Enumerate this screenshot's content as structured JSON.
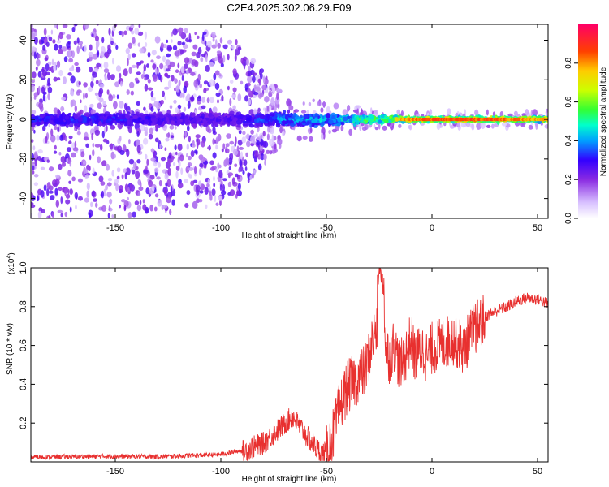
{
  "title": "C2E4.2025.302.06.29.E09",
  "chart_data": [
    {
      "type": "heatmap",
      "title": "C2E4.2025.302.06.29.E09",
      "xlabel": "Height of straight line (km)",
      "ylabel": "Frequency (Hz)",
      "xlim": [
        -190,
        55
      ],
      "ylim": [
        -50,
        48
      ],
      "xticks": [
        -150,
        -100,
        -50,
        0,
        50
      ],
      "yticks": [
        -40,
        -20,
        0,
        20,
        40
      ],
      "colorbar": {
        "label": "Normalized spectral amplitude",
        "range": [
          0,
          1
        ],
        "ticks": [
          0.0,
          0.2,
          0.4,
          0.6,
          0.8
        ],
        "colors": [
          "#ffffff",
          "#b58cff",
          "#6a00e6",
          "#0000ff",
          "#00c8ff",
          "#00ff7f",
          "#7fff00",
          "#ffff00",
          "#ff8000",
          "#ff0000",
          "#ff0080"
        ]
      },
      "description_points": [
        {
          "x": -180,
          "spread": 48,
          "peak": 0.35
        },
        {
          "x": -150,
          "spread": 48,
          "peak": 0.35
        },
        {
          "x": -120,
          "spread": 45,
          "peak": 0.3
        },
        {
          "x": -95,
          "spread": 40,
          "peak": 0.3
        },
        {
          "x": -70,
          "spread": 10,
          "peak": 0.45
        },
        {
          "x": -45,
          "spread": 6,
          "peak": 0.5
        },
        {
          "x": -20,
          "spread": 3,
          "peak": 0.75
        },
        {
          "x": 0,
          "spread": 2,
          "peak": 0.85
        },
        {
          "x": 30,
          "spread": 2,
          "peak": 0.85
        },
        {
          "x": 55,
          "spread": 2,
          "peak": 0.75
        }
      ]
    },
    {
      "type": "line",
      "xlabel": "Height of straight line (km)",
      "ylabel": "SNR (10 * v/v)",
      "yscale_label": "(x10",
      "yscale_exp": "4",
      "yscale_close": ")",
      "xlim": [
        -190,
        55
      ],
      "ylim": [
        0,
        1.0
      ],
      "xticks": [
        -150,
        -100,
        -50,
        0,
        50
      ],
      "yticks": [
        0.2,
        0.4,
        0.6,
        0.8,
        1.0
      ],
      "color": "#e8302f",
      "series": [
        {
          "name": "SNR",
          "x": [
            -190,
            -170,
            -150,
            -130,
            -110,
            -100,
            -90,
            -80,
            -75,
            -70,
            -66,
            -62,
            -58,
            -55,
            -52,
            -50,
            -46,
            -44,
            -42,
            -40,
            -38,
            -35,
            -32,
            -30,
            -28,
            -26,
            -24,
            -23,
            -22,
            -20,
            -18,
            -15,
            -12,
            -10,
            -8,
            -5,
            -2,
            0,
            5,
            10,
            15,
            20,
            25,
            30,
            35,
            40,
            45,
            50,
            55
          ],
          "y": [
            0.025,
            0.028,
            0.03,
            0.028,
            0.035,
            0.04,
            0.06,
            0.1,
            0.15,
            0.2,
            0.24,
            0.18,
            0.12,
            0.08,
            0.05,
            0.06,
            0.18,
            0.28,
            0.35,
            0.4,
            0.42,
            0.45,
            0.48,
            0.55,
            0.65,
            0.7,
            0.75,
            1.0,
            0.6,
            0.55,
            0.62,
            0.5,
            0.58,
            0.65,
            0.55,
            0.6,
            0.55,
            0.6,
            0.62,
            0.65,
            0.6,
            0.7,
            0.75,
            0.78,
            0.8,
            0.83,
            0.85,
            0.84,
            0.82
          ]
        }
      ]
    }
  ]
}
